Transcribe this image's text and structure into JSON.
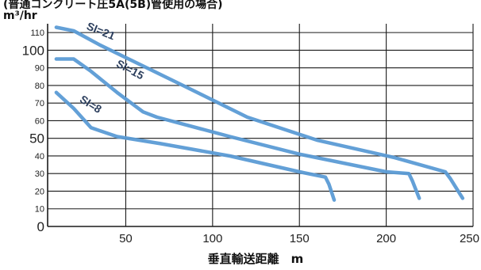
{
  "chart_data": {
    "type": "line",
    "title": "(普通コンクリート圧5A(5B)管使用の場合)",
    "ylabel_unit": "m³/hr",
    "xlabel": "垂直輸送距離　m",
    "xlim": [
      5,
      250
    ],
    "ylim": [
      0,
      115
    ],
    "x_ticks": [
      "50",
      "100",
      "150",
      "200",
      "250"
    ],
    "y_ticks": [
      {
        "value": 0,
        "label": "0",
        "major": true
      },
      {
        "value": 10,
        "label": "10",
        "major": false
      },
      {
        "value": 20,
        "label": "20",
        "major": false
      },
      {
        "value": 30,
        "label": "30",
        "major": false
      },
      {
        "value": 40,
        "label": "40",
        "major": false
      },
      {
        "value": 50,
        "label": "50",
        "major": true
      },
      {
        "value": 60,
        "label": "60",
        "major": false
      },
      {
        "value": 70,
        "label": "70",
        "major": false
      },
      {
        "value": 80,
        "label": "80",
        "major": false
      },
      {
        "value": 90,
        "label": "90",
        "major": false
      },
      {
        "value": 100,
        "label": "100",
        "major": true
      },
      {
        "value": 110,
        "label": "110",
        "major": false
      }
    ],
    "grid": true,
    "series": [
      {
        "name": "SI=21",
        "color": "#5b9bd5",
        "points": [
          [
            10,
            113
          ],
          [
            20,
            111
          ],
          [
            35,
            103
          ],
          [
            60,
            91
          ],
          [
            85,
            79
          ],
          [
            120,
            62
          ],
          [
            160,
            49
          ],
          [
            205,
            39
          ],
          [
            234,
            31
          ],
          [
            237,
            27
          ],
          [
            244,
            16
          ]
        ]
      },
      {
        "name": "SI=15",
        "color": "#5b9bd5",
        "points": [
          [
            10,
            95
          ],
          [
            20,
            95
          ],
          [
            30,
            88
          ],
          [
            45,
            76
          ],
          [
            60,
            65
          ],
          [
            68,
            62
          ],
          [
            110,
            51
          ],
          [
            150,
            41
          ],
          [
            200,
            31
          ],
          [
            213,
            30
          ],
          [
            215,
            26
          ],
          [
            219,
            16
          ]
        ]
      },
      {
        "name": "SI=8",
        "color": "#5b9bd5",
        "points": [
          [
            10,
            76
          ],
          [
            20,
            67
          ],
          [
            30,
            56
          ],
          [
            45,
            51
          ],
          [
            70,
            47
          ],
          [
            110,
            40
          ],
          [
            150,
            31
          ],
          [
            165,
            28
          ],
          [
            167,
            24
          ],
          [
            170,
            15
          ]
        ]
      }
    ],
    "annotations": [
      {
        "text": "SI=21",
        "x": 27,
        "y": 112,
        "rotate": 22
      },
      {
        "text": "SI=15",
        "x": 44,
        "y": 91,
        "rotate": 28
      },
      {
        "text": "SI=8",
        "x": 23,
        "y": 71,
        "rotate": 32
      }
    ]
  }
}
